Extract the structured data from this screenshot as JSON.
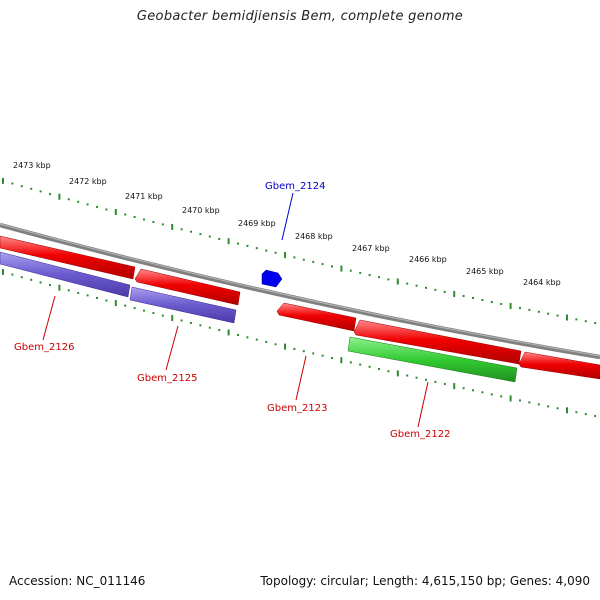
{
  "title": "Geobacter bemidjiensis Bem, complete genome",
  "footer": {
    "accession": "Accession: NC_011146",
    "summary": "Topology: circular; Length: 4,615,150 bp; Genes: 4,090"
  },
  "colors": {
    "backbone": "#808080",
    "cds_reverse": "#e00000",
    "cds_forward_blue": "#6a5acd",
    "cds_forward_green": "#33cc33",
    "small_feature": "#0000ee",
    "tick": "#2e8b2e",
    "label_red": "#cc0000",
    "label_blue": "#0000cc"
  },
  "scale_labels": [
    "2473 kbp",
    "2472 kbp",
    "2471 kbp",
    "2470 kbp",
    "2469 kbp",
    "2468 kbp",
    "2467 kbp",
    "2466 kbp",
    "2465 kbp",
    "2464 kbp"
  ],
  "gene_labels": [
    {
      "text": "Gbem_2124",
      "color": "blue"
    },
    {
      "text": "Gbem_2126",
      "color": "red"
    },
    {
      "text": "Gbem_2125",
      "color": "red"
    },
    {
      "text": "Gbem_2123",
      "color": "red"
    },
    {
      "text": "Gbem_2122",
      "color": "red"
    }
  ],
  "feature_icons": [
    "red-reverse-cds-arrow",
    "blue-forward-cds-bar",
    "green-forward-cds-bar",
    "blue-small-feature-arrow"
  ]
}
